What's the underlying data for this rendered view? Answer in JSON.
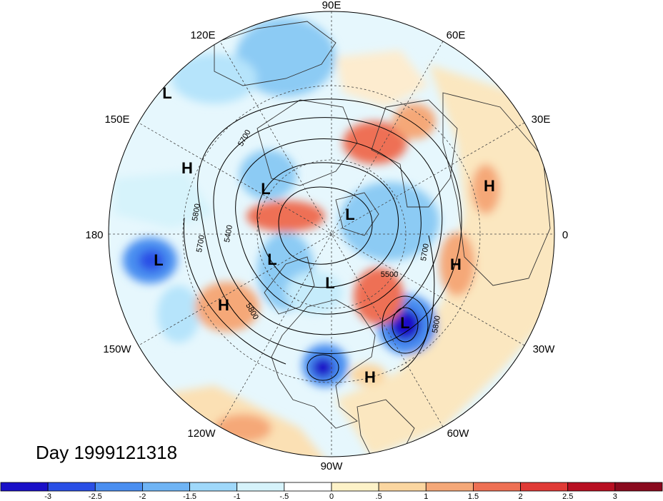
{
  "title": "Day 1999121318",
  "longitude_labels": [
    "90E",
    "60E",
    "30E",
    "0",
    "30W",
    "60W",
    "90W",
    "120W",
    "150W",
    "180",
    "150E",
    "120E"
  ],
  "pressure_systems": [
    "L",
    "H",
    "L",
    "L",
    "L",
    "H",
    "H",
    "L",
    "H",
    "L",
    "L",
    "H"
  ],
  "contour_labels": [
    "5700",
    "5800",
    "5400",
    "5700",
    "5500",
    "5700",
    "5800",
    "5800"
  ],
  "colorbar": {
    "ticks": [
      "-3",
      "-2.5",
      "-2",
      "-1.5",
      "-1",
      "-.5",
      "0",
      ".5",
      "1",
      "1.5",
      "2",
      "2.5",
      "3"
    ],
    "colors": [
      "#1a10c8",
      "#2a4fe6",
      "#4a8ef0",
      "#6fb4f5",
      "#9fd8fa",
      "#d6f3fb",
      "#ffffff",
      "#fdf2c8",
      "#fbd6a0",
      "#f5a878",
      "#ee7054",
      "#e03a36",
      "#b80f22",
      "#8a0a1e"
    ]
  },
  "colors": {
    "ocean_neutral": "#e6f7fd",
    "land_outline": "#333333",
    "graticule": "#444444"
  }
}
